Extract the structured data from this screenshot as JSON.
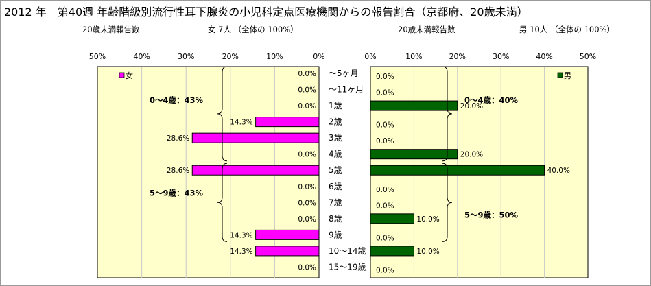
{
  "title": "2012 年　第40週 年齢階級別流行性耳下腺炎の小児科定点医療機関からの報告割合（京都府、20歳未満）",
  "left_header": {
    "label": "20歳未満報告数",
    "summary": "女  7人 （全体の  100%）"
  },
  "right_header": {
    "label": "20歳未満報告数",
    "summary": "男  10人 （全体の  100%）"
  },
  "colors": {
    "female": "#ff00ff",
    "male": "#006400",
    "plot_bg": "#ffffcc"
  },
  "chart_data": [
    {
      "type": "bar",
      "orientation": "horizontal",
      "direction": "right-to-left",
      "legend": "女",
      "legend_position": "top-left",
      "xlim": [
        0,
        50
      ],
      "ticks": [
        50,
        40,
        30,
        20,
        10,
        0
      ],
      "tick_labels": [
        "50%",
        "40%",
        "30%",
        "20%",
        "10%",
        "0%"
      ],
      "categories": [
        "～5ヶ月",
        "～11ヶ月",
        "1歳",
        "2歳",
        "3歳",
        "4歳",
        "5歳",
        "6歳",
        "7歳",
        "8歳",
        "9歳",
        "10～14歳",
        "15～19歳"
      ],
      "values": [
        0.0,
        0.0,
        0.0,
        14.3,
        28.6,
        0.0,
        28.6,
        0.0,
        0.0,
        0.0,
        14.3,
        14.3,
        0.0
      ],
      "value_labels": [
        "0.0%",
        "0.0%",
        "0.0%",
        "14.3%",
        "28.6%",
        "0.0%",
        "28.6%",
        "0.0%",
        "0.0%",
        "0.0%",
        "14.3%",
        "14.3%",
        "0.0%"
      ],
      "annotations": [
        {
          "text": "0～4歳：43%",
          "from": 0,
          "to": 5
        },
        {
          "text": "5～9歳：43%",
          "from": 6,
          "to": 10
        }
      ]
    },
    {
      "type": "bar",
      "orientation": "horizontal",
      "direction": "left-to-right",
      "legend": "男",
      "legend_position": "top-right",
      "xlim": [
        0,
        50
      ],
      "ticks": [
        0,
        10,
        20,
        30,
        40,
        50
      ],
      "tick_labels": [
        "0%",
        "10%",
        "20%",
        "30%",
        "40%",
        "50%"
      ],
      "categories": [
        "～5ヶ月",
        "～11ヶ月",
        "1歳",
        "2歳",
        "3歳",
        "4歳",
        "5歳",
        "6歳",
        "7歳",
        "8歳",
        "9歳",
        "10～14歳",
        "15～19歳"
      ],
      "values": [
        0.0,
        0.0,
        20.0,
        0.0,
        0.0,
        20.0,
        40.0,
        0.0,
        0.0,
        10.0,
        0.0,
        10.0,
        0.0
      ],
      "value_labels": [
        "0.0%",
        "0.0%",
        "20.0%",
        "0.0%",
        "0.0%",
        "20.0%",
        "40.0%",
        "0.0%",
        "0.0%",
        "10.0%",
        "0.0%",
        "10.0%",
        "0.0%"
      ],
      "annotations": [
        {
          "text": "0～4歳：40%",
          "from": 0,
          "to": 5
        },
        {
          "text": "5～9歳：50%",
          "from": 6,
          "to": 10
        }
      ]
    }
  ]
}
